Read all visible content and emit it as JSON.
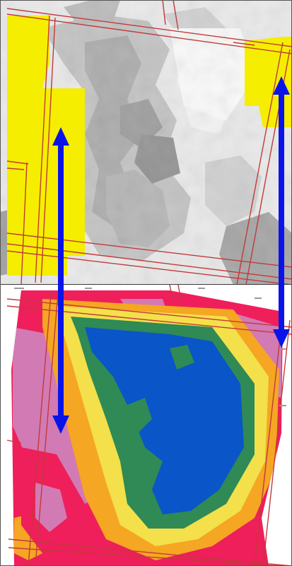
{
  "title": "",
  "colors": {
    "highlight_yellow": "#f5ee00",
    "grid_line_red": "#c23a3a",
    "arrow_blue": "#0a14e8",
    "gray_dark": "#9d9d9d",
    "gray_light": "#f4f4f4",
    "contour_pink": "#ee1f5a",
    "contour_magenta": "#d27ab4",
    "contour_orange": "#f5a623",
    "contour_yellow": "#f3e04a",
    "contour_green": "#2f8a55",
    "contour_blue": "#0a55c8"
  },
  "icons": [
    "vertical-double-arrow-icon",
    "vertical-double-arrow-icon"
  ],
  "panels": [
    {
      "name": "grayscale-map-panel",
      "type": "raster-grayscale-with-highlight"
    },
    {
      "name": "contour-map-panel",
      "type": "color-contour"
    }
  ]
}
